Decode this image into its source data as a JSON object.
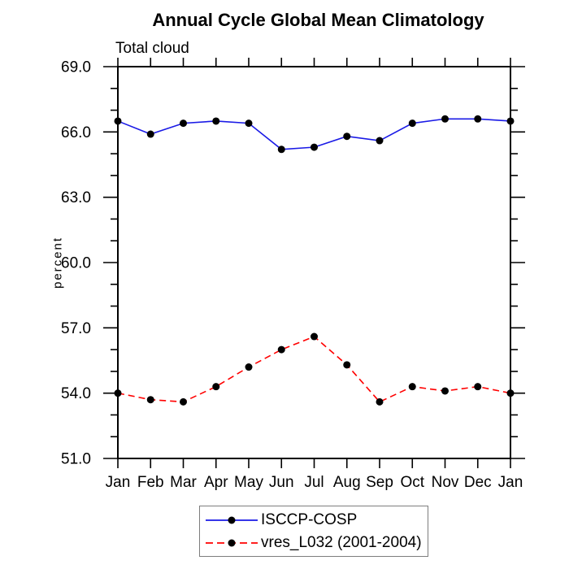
{
  "chart_data": {
    "type": "line",
    "title": "Annual Cycle Global Mean Climatology",
    "subtitle": "Total cloud",
    "ylabel": "percent",
    "x_categories": [
      "Jan",
      "Feb",
      "Mar",
      "Apr",
      "May",
      "Jun",
      "Jul",
      "Aug",
      "Sep",
      "Oct",
      "Nov",
      "Dec",
      "Jan"
    ],
    "series": [
      {
        "name": "ISCCP-COSP",
        "color": "#1a1ae6",
        "line_style": "solid",
        "marker": "filled-circle",
        "marker_color": "#000000",
        "values": [
          66.5,
          65.9,
          66.4,
          66.5,
          66.4,
          65.2,
          65.3,
          65.8,
          65.6,
          66.4,
          66.6,
          66.6,
          66.5
        ]
      },
      {
        "name": "vres_L032 (2001-2004)",
        "color": "#ff0000",
        "line_style": "dashed",
        "marker": "filled-circle",
        "marker_color": "#000000",
        "values": [
          54.0,
          53.7,
          53.6,
          54.3,
          55.2,
          56.0,
          56.6,
          55.3,
          53.6,
          54.3,
          54.1,
          54.3,
          54.0
        ]
      }
    ],
    "ylim": [
      51.0,
      69.0
    ],
    "ytick_labels": [
      "51.0",
      "54.0",
      "57.0",
      "60.0",
      "63.0",
      "66.0",
      "69.0"
    ],
    "ytick_major_step": 3.0,
    "ytick_minor_step": 1.0,
    "grid": false,
    "legend_position": "bottom-center"
  },
  "legend": {
    "entries": [
      {
        "label": "ISCCP-COSP",
        "color": "#1a1ae6",
        "style": "solid"
      },
      {
        "label": "vres_L032 (2001-2004)",
        "color": "#ff0000",
        "style": "dashed"
      }
    ]
  }
}
